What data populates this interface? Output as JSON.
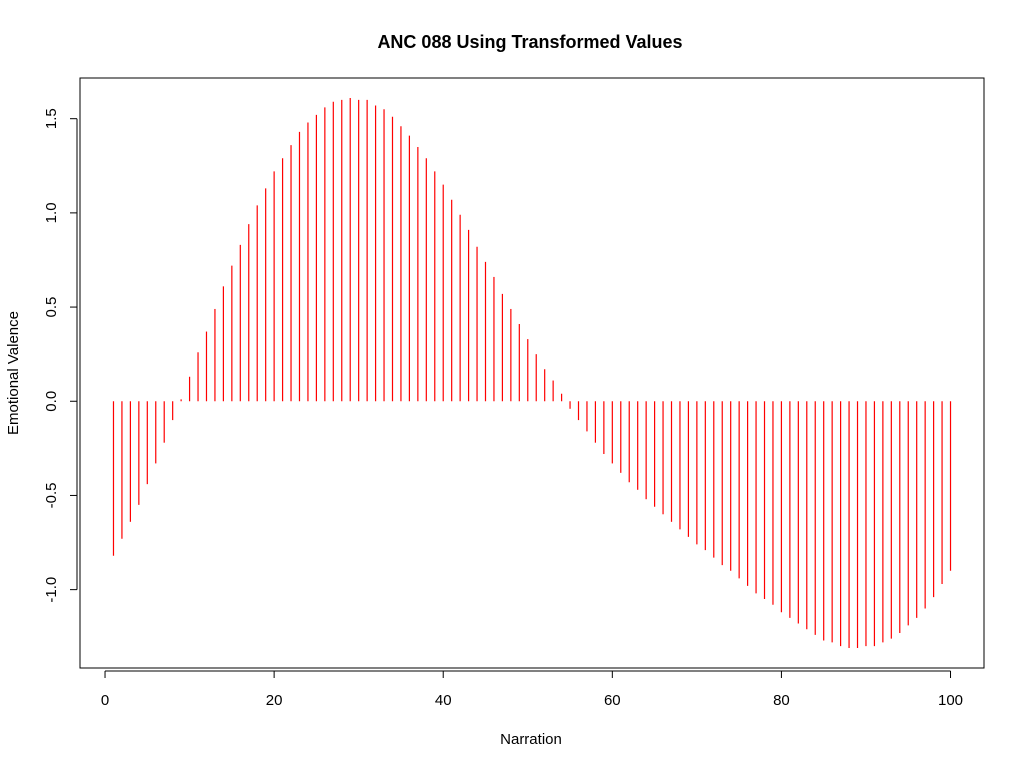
{
  "chart_data": {
    "type": "histogram-lines",
    "title": "ANC 088 Using Transformed Values",
    "x_label": "Narration",
    "y_label": "Emotional Valence",
    "color": "#ff0000",
    "x": [
      1,
      2,
      3,
      4,
      5,
      6,
      7,
      8,
      9,
      10,
      11,
      12,
      13,
      14,
      15,
      16,
      17,
      18,
      19,
      20,
      21,
      22,
      23,
      24,
      25,
      26,
      27,
      28,
      29,
      30,
      31,
      32,
      33,
      34,
      35,
      36,
      37,
      38,
      39,
      40,
      41,
      42,
      43,
      44,
      45,
      46,
      47,
      48,
      49,
      50,
      51,
      52,
      53,
      54,
      55,
      56,
      57,
      58,
      59,
      60,
      61,
      62,
      63,
      64,
      65,
      66,
      67,
      68,
      69,
      70,
      71,
      72,
      73,
      74,
      75,
      76,
      77,
      78,
      79,
      80,
      81,
      82,
      83,
      84,
      85,
      86,
      87,
      88,
      89,
      90,
      91,
      92,
      93,
      94,
      95,
      96,
      97,
      98,
      99,
      100
    ],
    "values": [
      -0.82,
      -0.73,
      -0.64,
      -0.55,
      -0.44,
      -0.33,
      -0.22,
      -0.1,
      0.01,
      0.13,
      0.26,
      0.37,
      0.49,
      0.61,
      0.72,
      0.83,
      0.94,
      1.04,
      1.13,
      1.22,
      1.29,
      1.36,
      1.43,
      1.48,
      1.52,
      1.56,
      1.59,
      1.6,
      1.61,
      1.6,
      1.6,
      1.57,
      1.55,
      1.51,
      1.46,
      1.41,
      1.35,
      1.29,
      1.22,
      1.15,
      1.07,
      0.99,
      0.91,
      0.82,
      0.74,
      0.66,
      0.57,
      0.49,
      0.41,
      0.33,
      0.25,
      0.17,
      0.11,
      0.04,
      -0.04,
      -0.1,
      -0.16,
      -0.22,
      -0.28,
      -0.33,
      -0.38,
      -0.43,
      -0.47,
      -0.52,
      -0.56,
      -0.6,
      -0.64,
      -0.68,
      -0.72,
      -0.76,
      -0.79,
      -0.83,
      -0.87,
      -0.9,
      -0.94,
      -0.98,
      -1.02,
      -1.05,
      -1.08,
      -1.12,
      -1.15,
      -1.18,
      -1.21,
      -1.24,
      -1.27,
      -1.28,
      -1.3,
      -1.31,
      -1.31,
      -1.3,
      -1.3,
      -1.28,
      -1.26,
      -1.23,
      -1.19,
      -1.15,
      -1.1,
      -1.04,
      -0.97,
      -0.9
    ],
    "xlim": [
      -2.96,
      103.96
    ],
    "xticks": [
      0,
      20,
      40,
      60,
      80,
      100
    ],
    "ylim": [
      -1.416,
      1.716
    ],
    "yticks": [
      {
        "value": -1,
        "label": "-1.0"
      },
      -0.5,
      {
        "value": 0,
        "label": "0.0"
      },
      0.5,
      {
        "value": 1,
        "label": "1.0"
      },
      1.5
    ]
  }
}
